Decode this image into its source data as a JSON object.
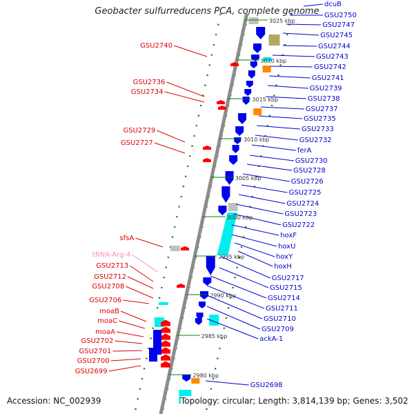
{
  "title": "Geobacter sulfurreducens PCA, complete genome",
  "footer": {
    "accession": "Accession: NC_002939",
    "topology": "Topology: circular; Length: 3,814,139 bp; Genes: 3,502"
  },
  "colors": {
    "backbone": "#8c8c8c",
    "gene_cds": "#0000ee",
    "gene_cds_other": "#ff0000",
    "tick_green": "#008000",
    "label_right": "#0000cc",
    "label_left": "#dd0000",
    "trna": "#ff88c0",
    "cyan": "#00eeee",
    "orange": "#ff8800",
    "gray": "#c0c0c0",
    "olive": "#b0a860"
  },
  "scale_labels": [
    "3025 kbp",
    "3020 kbp",
    "3015 kbp",
    "3010 kbp",
    "3005 kbp",
    "3000 kbp",
    "2995 kbp",
    "2990 kbp",
    "2985 kbp",
    "2980 kbp"
  ],
  "right_labels": [
    "dcuB",
    "GSU2750",
    "GSU2747",
    "GSU2745",
    "GSU2744",
    "GSU2743",
    "GSU2742",
    "GSU2741",
    "GSU2739",
    "GSU2738",
    "GSU2737",
    "GSU2735",
    "GSU2733",
    "GSU2732",
    "ferA",
    "GSU2730",
    "GSU2728",
    "GSU2726",
    "GSU2725",
    "GSU2724",
    "GSU2723",
    "GSU2722",
    "hoxF",
    "hoxU",
    "hoxY",
    "hoxH",
    "GSU2717",
    "GSU2715",
    "GSU2714",
    "GSU2711",
    "GSU2710",
    "GSU2709",
    "ackA-1",
    "GSU2698"
  ],
  "left_labels": [
    "GSU2740",
    "GSU2736",
    "GSU2734",
    "GSU2729",
    "GSU2727",
    "sfsA",
    "tRNA-Arg-4",
    "GSU2713",
    "GSU2712",
    "GSU2708",
    "GSU2706",
    "moaB",
    "moaC",
    "moaA",
    "GSU2702",
    "GSU2701",
    "GSU2700",
    "GSU2699"
  ]
}
